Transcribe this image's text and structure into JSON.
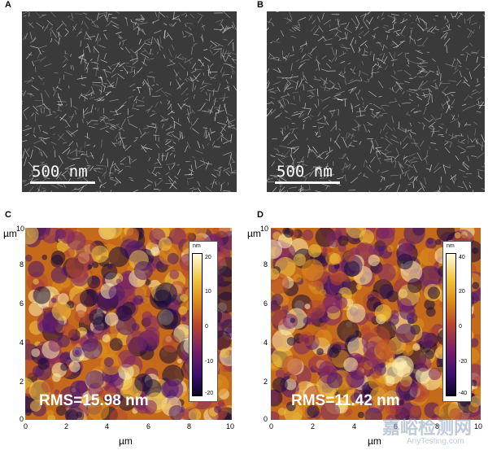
{
  "panels": {
    "A": {
      "label": "A",
      "scale_text": "500 nm"
    },
    "B": {
      "label": "B",
      "scale_text": "500 nm"
    },
    "C": {
      "label": "C",
      "unit_y": "µm",
      "unit_x": "µm",
      "x_ticks": [
        "0",
        "2",
        "4",
        "6",
        "8",
        "10"
      ],
      "y_ticks": [
        "0",
        "2",
        "4",
        "6",
        "8",
        "10"
      ],
      "rms": "RMS=15.98 nm",
      "colorbar": {
        "unit": "nm",
        "ticks": [
          "20",
          "10",
          "0",
          "-10",
          "-20"
        ]
      }
    },
    "D": {
      "label": "D",
      "unit_y": "µm",
      "unit_x": "µm",
      "x_ticks": [
        "0",
        "2",
        "4",
        "6",
        "8",
        "10"
      ],
      "y_ticks": [
        "0",
        "2",
        "4",
        "6",
        "8",
        "10"
      ],
      "rms": "RMS=11.42 nm",
      "colorbar": {
        "unit": "nm",
        "ticks": [
          "40",
          "20",
          "0",
          "-20",
          "-40"
        ]
      }
    }
  },
  "watermark": {
    "text": "嘉峪检测网",
    "sub": "AnyTesting.com"
  },
  "colors": {
    "afm_dark": "#1a0b3a",
    "afm_mid": "#c46a1a",
    "afm_light": "#f7e9a0",
    "sem_bg": "#3a3a3a"
  }
}
